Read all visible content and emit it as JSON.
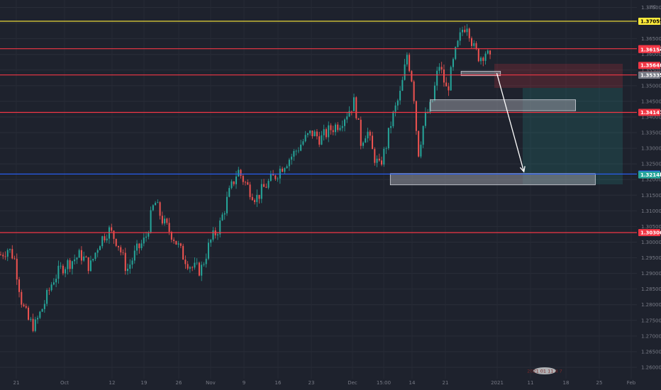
{
  "chart_data": {
    "type": "candlestick",
    "currency": "USD",
    "ylim": [
      1.2575,
      1.3785
    ],
    "y_ticks": [
      "1.37500",
      "1.37000",
      "1.36500",
      "1.36000",
      "1.35500",
      "1.35000",
      "1.34500",
      "1.34000",
      "1.33500",
      "1.33000",
      "1.32500",
      "1.32000",
      "1.31500",
      "1.31000",
      "1.30500",
      "1.30000",
      "1.29500",
      "1.29000",
      "1.28500",
      "1.28000",
      "1.27500",
      "1.27000",
      "1.26500",
      "1.26000"
    ],
    "x_ticks": [
      "21",
      "Oct",
      "12",
      "19",
      "26",
      "Nov",
      "9",
      "16",
      "23",
      "Dec",
      "15:00",
      "14",
      "21",
      "2021",
      "11",
      "18",
      "25",
      "Feb"
    ],
    "levels": [
      {
        "value": 1.37059,
        "label": "1.37059",
        "color": "#ffeb3b",
        "text_color": "#000000"
      },
      {
        "value": 1.36182,
        "label": "1.36182",
        "color": "#f23645",
        "text_color": "#ffffff"
      },
      {
        "value": 1.35343,
        "label": "1.35343",
        "color": "#f23645",
        "text_color": "#ffffff"
      },
      {
        "value": 1.34147,
        "label": "1.34147",
        "color": "#f23645",
        "text_color": "#ffffff"
      },
      {
        "value": 1.32176,
        "label": "1.32176",
        "color": "#2962ff",
        "text_color": "#ffffff"
      },
      {
        "value": 1.30306,
        "label": "1.30306",
        "color": "#f23645",
        "text_color": "#ffffff"
      }
    ],
    "price_tags": [
      {
        "value": 1.36154,
        "label": "1.36154",
        "bg": "#f23645",
        "text_color": "#ffffff"
      },
      {
        "value": 1.35648,
        "label": "1.35648",
        "bg": "#f23645",
        "text_color": "#ffffff"
      },
      {
        "value": 1.35335,
        "label": "1.35335",
        "bg": "#787b86",
        "text_color": "#ffffff"
      },
      {
        "value": 1.32148,
        "label": "1.32148",
        "bg": "#26a69a",
        "text_color": "#ffffff"
      }
    ],
    "zones": [
      {
        "x0": 0.749,
        "x1": 0.813,
        "y0": 1.3546,
        "y1": 1.3532
      },
      {
        "x0": 0.699,
        "x1": 0.935,
        "y0": 1.3455,
        "y1": 1.342
      },
      {
        "x0": 0.634,
        "x1": 0.967,
        "y0": 1.3219,
        "y1": 1.3183
      }
    ],
    "candles_anchor": [
      [
        0.0,
        1.296
      ],
      [
        0.012,
        1.298
      ],
      [
        0.022,
        1.295
      ],
      [
        0.035,
        1.28
      ],
      [
        0.045,
        1.275
      ],
      [
        0.055,
        1.273
      ],
      [
        0.07,
        1.28
      ],
      [
        0.085,
        1.288
      ],
      [
        0.1,
        1.292
      ],
      [
        0.115,
        1.294
      ],
      [
        0.13,
        1.296
      ],
      [
        0.145,
        1.292
      ],
      [
        0.16,
        1.3
      ],
      [
        0.175,
        1.304
      ],
      [
        0.19,
        1.3
      ],
      [
        0.205,
        1.291
      ],
      [
        0.22,
        1.297
      ],
      [
        0.235,
        1.301
      ],
      [
        0.25,
        1.313
      ],
      [
        0.265,
        1.306
      ],
      [
        0.28,
        1.302
      ],
      [
        0.295,
        1.296
      ],
      [
        0.31,
        1.292
      ],
      [
        0.325,
        1.291
      ],
      [
        0.34,
        1.3
      ],
      [
        0.355,
        1.305
      ],
      [
        0.37,
        1.315
      ],
      [
        0.385,
        1.323
      ],
      [
        0.4,
        1.318
      ],
      [
        0.415,
        1.314
      ],
      [
        0.43,
        1.318
      ],
      [
        0.445,
        1.321
      ],
      [
        0.46,
        1.325
      ],
      [
        0.475,
        1.328
      ],
      [
        0.49,
        1.332
      ],
      [
        0.505,
        1.335
      ],
      [
        0.52,
        1.333
      ],
      [
        0.535,
        1.336
      ],
      [
        0.55,
        1.338
      ],
      [
        0.565,
        1.342
      ],
      [
        0.575,
        1.345
      ],
      [
        0.585,
        1.332
      ],
      [
        0.595,
        1.336
      ],
      [
        0.605,
        1.328
      ],
      [
        0.615,
        1.324
      ],
      [
        0.625,
        1.33
      ],
      [
        0.635,
        1.339
      ],
      [
        0.65,
        1.348
      ],
      [
        0.66,
        1.36
      ],
      [
        0.67,
        1.35
      ],
      [
        0.678,
        1.328
      ],
      [
        0.688,
        1.339
      ],
      [
        0.7,
        1.344
      ],
      [
        0.712,
        1.357
      ],
      [
        0.725,
        1.348
      ],
      [
        0.738,
        1.36
      ],
      [
        0.75,
        1.368
      ],
      [
        0.758,
        1.37
      ],
      [
        0.768,
        1.362
      ],
      [
        0.778,
        1.359
      ],
      [
        0.788,
        1.361
      ],
      [
        0.798,
        1.3565
      ]
    ],
    "projection_arrow": {
      "from": [
        0.807,
        1.354
      ],
      "to": [
        0.851,
        1.3225
      ]
    }
  },
  "watermark": "2021 01 11 4 7"
}
